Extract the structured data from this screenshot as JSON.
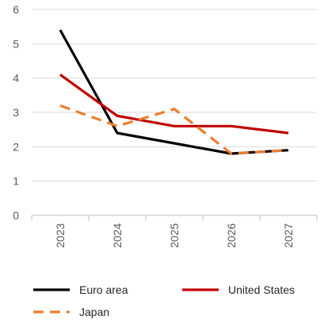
{
  "chart_data": {
    "type": "line",
    "categories": [
      "2023",
      "2024",
      "2025",
      "2026",
      "2027"
    ],
    "series": [
      {
        "name": "Euro area",
        "values": [
          5.4,
          2.4,
          2.1,
          1.8,
          1.9
        ],
        "color": "#000000",
        "dashed": false
      },
      {
        "name": "United States",
        "values": [
          4.1,
          2.9,
          2.6,
          2.6,
          2.4
        ],
        "color": "#C00000",
        "dashed": false
      },
      {
        "name": "Japan",
        "values": [
          3.2,
          2.6,
          3.1,
          1.8,
          1.9
        ],
        "color": "#ED7D31",
        "dashed": true
      }
    ],
    "ylim": [
      0,
      6
    ],
    "yticks": [
      "0",
      "1",
      "2",
      "3",
      "4",
      "5",
      "6"
    ],
    "grid": true,
    "legend_position": "bottom"
  }
}
